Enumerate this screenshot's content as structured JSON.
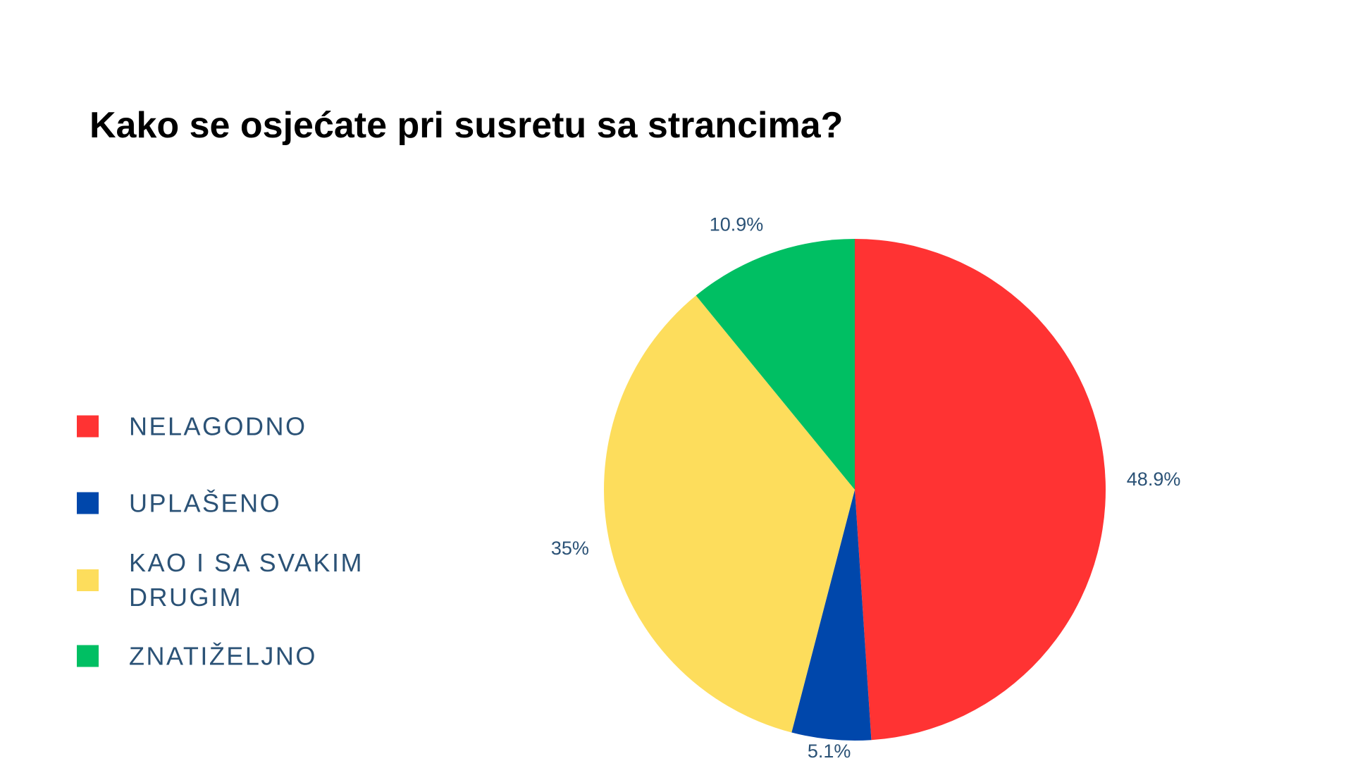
{
  "chart_data": {
    "type": "pie",
    "title": "Kako se osjećate pri susretu sa strancima?",
    "categories": [
      "NELAGODNO",
      "UPLAŠENO",
      "KAO I SA SVAKIM DRUGIM",
      "ZNATIŽELJNO"
    ],
    "values": [
      48.9,
      5.1,
      35,
      10.9
    ],
    "value_labels": [
      "48.9%",
      "5.1%",
      "35%",
      "10.9%"
    ],
    "colors": [
      "#ff3333",
      "#0047ab",
      "#fddd5c",
      "#00bf63"
    ],
    "legend": "left"
  }
}
